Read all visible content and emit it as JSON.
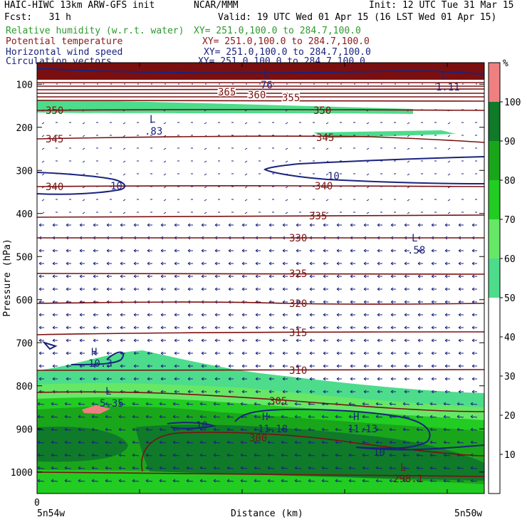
{
  "header": {
    "model": "HAIC-HIWC 13km ARW-GFS init",
    "center": "NCAR/MMM",
    "init": "Init: 12 UTC Tue 31 Mar 15",
    "fcst": "Fcst:   31 h",
    "valid": "Valid: 19 UTC Wed 01 Apr 15 (16 LST Wed 01 Apr 15)",
    "fields": [
      {
        "name": "Relative humidity (w.r.t. water)",
        "xy": "XY= 251.0,100.0 to 284.7,100.0",
        "color": "#2e9a2e"
      },
      {
        "name": "Potential temperature",
        "xy": "XY= 251.0,100.0 to 284.7,100.0",
        "color": "#8b1a1a"
      },
      {
        "name": "Horizontal wind speed",
        "xy": "XY= 251.0,100.0 to 284.7,100.0",
        "color": "#1a237e"
      },
      {
        "name": "Circulation vectors",
        "xy": "XY= 251.0,100.0 to 284.7,100.0",
        "color": "#1a237e"
      }
    ]
  },
  "chart_data": {
    "type": "heatmap",
    "ylabel": "Pressure (hPa)",
    "xlabel": "Distance (km)",
    "x_tick_labels": [
      "0"
    ],
    "x_end_labels": [
      "5n54w",
      "5n50w"
    ],
    "y_ticks": [
      100,
      200,
      300,
      400,
      500,
      600,
      700,
      800,
      900,
      1000
    ],
    "ylim": [
      1050,
      50
    ],
    "colorbar": {
      "unit": "%",
      "ticks": [
        10,
        20,
        30,
        40,
        50,
        60,
        70,
        80,
        90,
        100
      ],
      "colors": [
        "#ffffff",
        "#ffffff",
        "#ffffff",
        "#ffffff",
        "#ffffff",
        "#4ddc8b",
        "#66e866",
        "#22cc22",
        "#1aa61a",
        "#0f7a2a",
        "#f08080"
      ],
      "range": [
        0,
        110
      ]
    },
    "theta_contours": [
      365,
      360,
      355,
      350,
      345,
      340,
      335,
      330,
      325,
      320,
      315,
      310,
      305,
      300
    ],
    "wind_contours": [
      10
    ],
    "extrema_labels": [
      {
        "type": "L",
        "value": "76"
      },
      {
        "type": "L",
        "value": "1.11"
      },
      {
        "type": "L",
        "value": ".83"
      },
      {
        "type": "L",
        "value": ".58"
      },
      {
        "type": "H",
        "value": "10.3"
      },
      {
        "type": "L",
        "value": "5.35"
      },
      {
        "type": "H",
        "value": "11.18"
      },
      {
        "type": "H",
        "value": "11.13"
      },
      {
        "type": "L",
        "value": "298.1"
      }
    ]
  }
}
